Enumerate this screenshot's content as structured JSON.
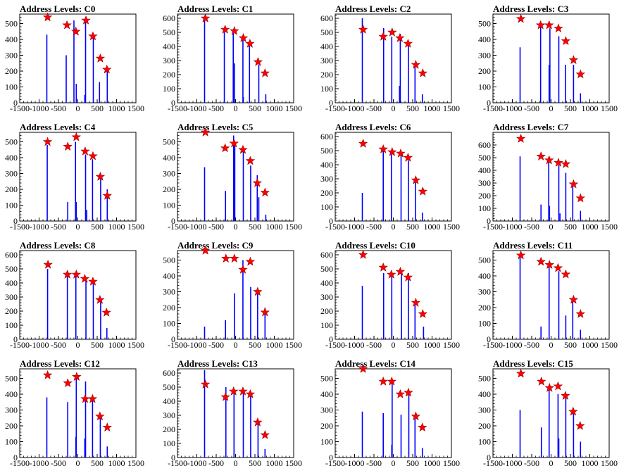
{
  "colors": {
    "bars": "#0000ff",
    "markers": "#ff0000",
    "axes": "#000000"
  },
  "chart_data": [
    {
      "type": "bar",
      "title": "Address Levels: C0",
      "xlim": [
        -1500,
        1500
      ],
      "ylim": [
        0,
        560
      ],
      "xticks": [
        -1500,
        -1000,
        -500,
        0,
        500,
        1000,
        1500
      ],
      "yticks": [
        0,
        100,
        200,
        300,
        400,
        500
      ],
      "bars": [
        [
          -800,
          430
        ],
        [
          -300,
          300
        ],
        [
          -100,
          520
        ],
        [
          -40,
          120
        ],
        [
          200,
          520
        ],
        [
          180,
          50
        ],
        [
          400,
          420
        ],
        [
          560,
          130
        ],
        [
          760,
          210
        ]
      ],
      "peaks": [
        [
          -780,
          540
        ],
        [
          -280,
          490
        ],
        [
          -50,
          450
        ],
        [
          210,
          520
        ],
        [
          390,
          420
        ],
        [
          580,
          280
        ],
        [
          750,
          210
        ]
      ]
    },
    {
      "type": "bar",
      "title": "Address Levels: C1",
      "xlim": [
        -1500,
        1500
      ],
      "ylim": [
        0,
        630
      ],
      "xticks": [
        -1500,
        -1000,
        -500,
        0,
        500,
        1000,
        1500
      ],
      "yticks": [
        0,
        100,
        200,
        300,
        400,
        500,
        600
      ],
      "bars": [
        [
          -800,
          600
        ],
        [
          -290,
          520
        ],
        [
          -60,
          510
        ],
        [
          -30,
          280
        ],
        [
          190,
          450
        ],
        [
          200,
          40
        ],
        [
          360,
          420
        ],
        [
          600,
          270
        ],
        [
          780,
          60
        ]
      ],
      "peaks": [
        [
          -780,
          600
        ],
        [
          -270,
          520
        ],
        [
          -30,
          510
        ],
        [
          200,
          460
        ],
        [
          370,
          420
        ],
        [
          580,
          290
        ],
        [
          760,
          210
        ]
      ]
    },
    {
      "type": "bar",
      "title": "Address Levels: C2",
      "xlim": [
        -1500,
        1500
      ],
      "ylim": [
        0,
        630
      ],
      "xticks": [
        -1500,
        -1000,
        -500,
        0,
        500,
        1000,
        1500
      ],
      "yticks": [
        0,
        100,
        200,
        300,
        400,
        500,
        600
      ],
      "bars": [
        [
          -800,
          600
        ],
        [
          -250,
          530
        ],
        [
          -40,
          470
        ],
        [
          180,
          490
        ],
        [
          160,
          120
        ],
        [
          390,
          430
        ],
        [
          560,
          270
        ],
        [
          750,
          60
        ]
      ],
      "peaks": [
        [
          -780,
          520
        ],
        [
          -260,
          470
        ],
        [
          -30,
          500
        ],
        [
          170,
          460
        ],
        [
          380,
          420
        ],
        [
          580,
          270
        ],
        [
          760,
          210
        ]
      ]
    },
    {
      "type": "bar",
      "title": "Address Levels: C3",
      "xlim": [
        -1500,
        1500
      ],
      "ylim": [
        0,
        560
      ],
      "xticks": [
        -1500,
        -1000,
        -500,
        0,
        500,
        1000,
        1500
      ],
      "yticks": [
        0,
        100,
        200,
        300,
        400,
        500
      ],
      "bars": [
        [
          -800,
          350
        ],
        [
          -270,
          480
        ],
        [
          -50,
          240
        ],
        [
          -30,
          470
        ],
        [
          200,
          420
        ],
        [
          370,
          240
        ],
        [
          580,
          240
        ],
        [
          760,
          60
        ]
      ],
      "peaks": [
        [
          -780,
          530
        ],
        [
          -270,
          490
        ],
        [
          -50,
          490
        ],
        [
          190,
          470
        ],
        [
          380,
          390
        ],
        [
          580,
          270
        ],
        [
          760,
          180
        ]
      ]
    },
    {
      "type": "bar",
      "title": "Address Levels: C4",
      "xlim": [
        -1500,
        1500
      ],
      "ylim": [
        0,
        560
      ],
      "xticks": [
        -1500,
        -1000,
        -500,
        0,
        500,
        1000,
        1500
      ],
      "yticks": [
        0,
        100,
        200,
        300,
        400,
        500
      ],
      "bars": [
        [
          -790,
          480
        ],
        [
          -260,
          120
        ],
        [
          -60,
          500
        ],
        [
          -40,
          120
        ],
        [
          200,
          420
        ],
        [
          230,
          70
        ],
        [
          380,
          390
        ],
        [
          590,
          280
        ],
        [
          760,
          200
        ]
      ],
      "peaks": [
        [
          -780,
          500
        ],
        [
          -260,
          470
        ],
        [
          -40,
          530
        ],
        [
          190,
          440
        ],
        [
          390,
          410
        ],
        [
          580,
          280
        ],
        [
          760,
          160
        ]
      ]
    },
    {
      "type": "bar",
      "title": "Address Levels: C5",
      "xlim": [
        -1500,
        1500
      ],
      "ylim": [
        0,
        560
      ],
      "xticks": [
        -1500,
        -1000,
        -500,
        0,
        500,
        1000,
        1500
      ],
      "yticks": [
        0,
        100,
        200,
        300,
        400,
        500
      ],
      "bars": [
        [
          -800,
          340
        ],
        [
          -260,
          190
        ],
        [
          -50,
          540
        ],
        [
          -20,
          480
        ],
        [
          200,
          460
        ],
        [
          390,
          350
        ],
        [
          560,
          290
        ],
        [
          600,
          150
        ],
        [
          780,
          40
        ]
      ],
      "peaks": [
        [
          -780,
          560
        ],
        [
          -270,
          460
        ],
        [
          -40,
          490
        ],
        [
          190,
          450
        ],
        [
          380,
          380
        ],
        [
          560,
          240
        ],
        [
          760,
          180
        ]
      ]
    },
    {
      "type": "bar",
      "title": "Address Levels: C6",
      "xlim": [
        -1500,
        1500
      ],
      "ylim": [
        0,
        630
      ],
      "xticks": [
        -1500,
        -1000,
        -500,
        0,
        500,
        1000,
        1500
      ],
      "yticks": [
        0,
        100,
        200,
        300,
        400,
        500,
        600
      ],
      "bars": [
        [
          -800,
          200
        ],
        [
          -260,
          510
        ],
        [
          -50,
          490
        ],
        [
          200,
          480
        ],
        [
          390,
          430
        ],
        [
          570,
          280
        ],
        [
          750,
          60
        ]
      ],
      "peaks": [
        [
          -780,
          550
        ],
        [
          -260,
          510
        ],
        [
          -30,
          490
        ],
        [
          190,
          480
        ],
        [
          380,
          450
        ],
        [
          580,
          290
        ],
        [
          760,
          210
        ]
      ]
    },
    {
      "type": "bar",
      "title": "Address Levels: C7",
      "xlim": [
        -1500,
        1500
      ],
      "ylim": [
        0,
        700
      ],
      "xticks": [
        -1500,
        -1000,
        -500,
        0,
        500,
        1000,
        1500
      ],
      "yticks": [
        0,
        100,
        200,
        300,
        400,
        500,
        600
      ],
      "bars": [
        [
          -800,
          510
        ],
        [
          -260,
          130
        ],
        [
          -60,
          500
        ],
        [
          -40,
          120
        ],
        [
          200,
          440
        ],
        [
          230,
          60
        ],
        [
          380,
          380
        ],
        [
          560,
          280
        ],
        [
          760,
          80
        ]
      ],
      "peaks": [
        [
          -780,
          650
        ],
        [
          -260,
          510
        ],
        [
          -50,
          480
        ],
        [
          190,
          460
        ],
        [
          380,
          450
        ],
        [
          580,
          290
        ],
        [
          760,
          180
        ]
      ]
    },
    {
      "type": "bar",
      "title": "Address Levels: C8",
      "xlim": [
        -1500,
        1500
      ],
      "ylim": [
        0,
        630
      ],
      "xticks": [
        -1500,
        -1000,
        -500,
        0,
        500,
        1000,
        1500
      ],
      "yticks": [
        0,
        100,
        200,
        300,
        400,
        500,
        600
      ],
      "bars": [
        [
          -780,
          500
        ],
        [
          -270,
          460
        ],
        [
          -50,
          470
        ],
        [
          210,
          420
        ],
        [
          400,
          410
        ],
        [
          590,
          270
        ],
        [
          750,
          80
        ]
      ],
      "peaks": [
        [
          -770,
          530
        ],
        [
          -270,
          460
        ],
        [
          -40,
          460
        ],
        [
          180,
          430
        ],
        [
          390,
          410
        ],
        [
          570,
          280
        ],
        [
          740,
          190
        ]
      ]
    },
    {
      "type": "bar",
      "title": "Address Levels: C9",
      "xlim": [
        -1500,
        1500
      ],
      "ylim": [
        0,
        560
      ],
      "xticks": [
        -1500,
        -1000,
        -500,
        0,
        500,
        1000,
        1500
      ],
      "yticks": [
        0,
        100,
        200,
        300,
        400,
        500
      ],
      "bars": [
        [
          -800,
          80
        ],
        [
          -260,
          120
        ],
        [
          -30,
          290
        ],
        [
          190,
          500
        ],
        [
          390,
          330
        ],
        [
          570,
          300
        ],
        [
          760,
          200
        ]
      ],
      "peaks": [
        [
          -780,
          560
        ],
        [
          -250,
          510
        ],
        [
          -30,
          510
        ],
        [
          190,
          440
        ],
        [
          380,
          490
        ],
        [
          570,
          300
        ],
        [
          760,
          170
        ]
      ]
    },
    {
      "type": "bar",
      "title": "Address Levels: C10",
      "xlim": [
        -1500,
        1500
      ],
      "ylim": [
        0,
        630
      ],
      "xticks": [
        -1500,
        -1000,
        -500,
        0,
        500,
        1000,
        1500
      ],
      "yticks": [
        0,
        100,
        200,
        300,
        400,
        500,
        600
      ],
      "bars": [
        [
          -800,
          380
        ],
        [
          -250,
          470
        ],
        [
          -40,
          70
        ],
        [
          -40,
          470
        ],
        [
          210,
          470
        ],
        [
          390,
          470
        ],
        [
          560,
          250
        ],
        [
          780,
          90
        ]
      ],
      "peaks": [
        [
          -780,
          600
        ],
        [
          -260,
          510
        ],
        [
          -50,
          460
        ],
        [
          180,
          480
        ],
        [
          380,
          440
        ],
        [
          580,
          260
        ],
        [
          760,
          180
        ]
      ]
    },
    {
      "type": "bar",
      "title": "Address Levels: C11",
      "xlim": [
        -1500,
        1500
      ],
      "ylim": [
        0,
        560
      ],
      "xticks": [
        -1500,
        -1000,
        -500,
        0,
        500,
        1000,
        1500
      ],
      "yticks": [
        0,
        100,
        200,
        300,
        400,
        500
      ],
      "bars": [
        [
          -800,
          520
        ],
        [
          -260,
          80
        ],
        [
          -50,
          470
        ],
        [
          200,
          430
        ],
        [
          380,
          150
        ],
        [
          560,
          240
        ],
        [
          760,
          60
        ]
      ],
      "peaks": [
        [
          -780,
          530
        ],
        [
          -260,
          490
        ],
        [
          -40,
          470
        ],
        [
          180,
          450
        ],
        [
          380,
          410
        ],
        [
          580,
          250
        ],
        [
          760,
          160
        ]
      ]
    },
    {
      "type": "bar",
      "title": "Address Levels: C12",
      "xlim": [
        -1500,
        1500
      ],
      "ylim": [
        0,
        560
      ],
      "xticks": [
        -1500,
        -1000,
        -500,
        0,
        500,
        1000,
        1500
      ],
      "yticks": [
        0,
        100,
        200,
        300,
        400,
        500
      ],
      "bars": [
        [
          -800,
          380
        ],
        [
          -260,
          350
        ],
        [
          -40,
          500
        ],
        [
          -50,
          130
        ],
        [
          200,
          480
        ],
        [
          180,
          120
        ],
        [
          380,
          360
        ],
        [
          580,
          250
        ],
        [
          760,
          70
        ]
      ],
      "peaks": [
        [
          -780,
          520
        ],
        [
          -260,
          470
        ],
        [
          -30,
          510
        ],
        [
          190,
          370
        ],
        [
          380,
          370
        ],
        [
          570,
          260
        ],
        [
          760,
          190
        ]
      ]
    },
    {
      "type": "bar",
      "title": "Address Levels: C13",
      "xlim": [
        -1500,
        1500
      ],
      "ylim": [
        0,
        630
      ],
      "xticks": [
        -1500,
        -1000,
        -500,
        0,
        500,
        1000,
        1500
      ],
      "yticks": [
        0,
        100,
        200,
        300,
        400,
        500,
        600
      ],
      "bars": [
        [
          -800,
          620
        ],
        [
          -250,
          500
        ],
        [
          -40,
          470
        ],
        [
          200,
          470
        ],
        [
          390,
          450
        ],
        [
          580,
          250
        ],
        [
          760,
          60
        ]
      ],
      "peaks": [
        [
          -780,
          520
        ],
        [
          -260,
          430
        ],
        [
          -50,
          470
        ],
        [
          190,
          470
        ],
        [
          380,
          450
        ],
        [
          570,
          250
        ],
        [
          760,
          160
        ]
      ]
    },
    {
      "type": "bar",
      "title": "Address Levels: C14",
      "xlim": [
        -1500,
        1500
      ],
      "ylim": [
        0,
        560
      ],
      "xticks": [
        -1500,
        -1000,
        -500,
        0,
        500,
        1000,
        1500
      ],
      "yticks": [
        0,
        100,
        200,
        300,
        400,
        500
      ],
      "bars": [
        [
          -800,
          290
        ],
        [
          -260,
          280
        ],
        [
          -40,
          80
        ],
        [
          -30,
          470
        ],
        [
          200,
          270
        ],
        [
          400,
          400
        ],
        [
          560,
          250
        ],
        [
          750,
          60
        ]
      ],
      "peaks": [
        [
          -780,
          560
        ],
        [
          -260,
          480
        ],
        [
          -40,
          480
        ],
        [
          180,
          400
        ],
        [
          390,
          410
        ],
        [
          580,
          260
        ],
        [
          750,
          190
        ]
      ]
    },
    {
      "type": "bar",
      "title": "Address Levels: C15",
      "xlim": [
        -1500,
        1500
      ],
      "ylim": [
        0,
        560
      ],
      "xticks": [
        -1500,
        -1000,
        -500,
        0,
        500,
        1000,
        1500
      ],
      "yticks": [
        0,
        100,
        200,
        300,
        400,
        500
      ],
      "bars": [
        [
          -800,
          300
        ],
        [
          -250,
          190
        ],
        [
          -50,
          440
        ],
        [
          180,
          400
        ],
        [
          200,
          120
        ],
        [
          380,
          380
        ],
        [
          580,
          280
        ],
        [
          760,
          100
        ]
      ],
      "peaks": [
        [
          -780,
          530
        ],
        [
          -250,
          480
        ],
        [
          -40,
          440
        ],
        [
          180,
          450
        ],
        [
          370,
          390
        ],
        [
          570,
          290
        ],
        [
          750,
          200
        ]
      ]
    }
  ]
}
